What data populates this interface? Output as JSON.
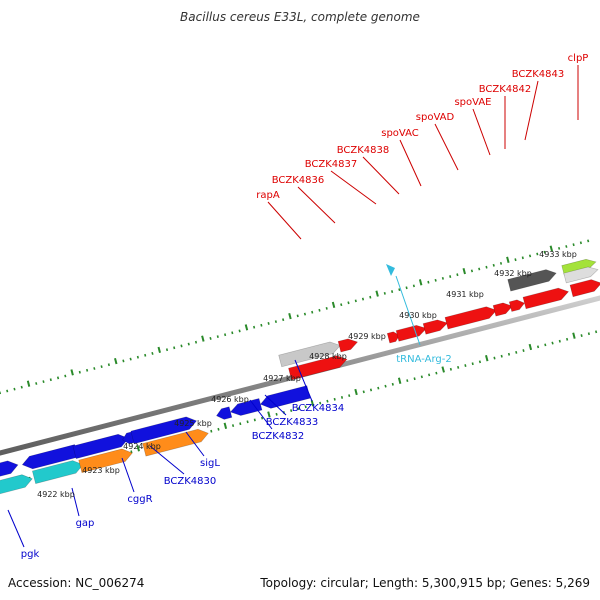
{
  "title": "Bacillus cereus E33L, complete genome",
  "footer": {
    "accession": "Accession: NC_006274",
    "summary": "Topology: circular; Length: 5,300,915 bp; Genes: 5,269"
  },
  "ruler_labels": [
    "4922 kbp",
    "4923 kbp",
    "4924 kbp",
    "4925 kbp",
    "4926 kbp",
    "4927 kbp",
    "4928 kbp",
    "4929 kbp",
    "4930 kbp",
    "4931 kbp",
    "4932 kbp",
    "4933 kbp"
  ],
  "genes_top": [
    "rapA",
    "BCZK4836",
    "BCZK4837",
    "BCZK4838",
    "spoVAC",
    "spoVAD",
    "spoVAE",
    "BCZK4842",
    "BCZK4843",
    "clpP"
  ],
  "genes_bottom": [
    "pgk",
    "gap",
    "cggR",
    "BCZK4830",
    "sigL",
    "BCZK4832",
    "BCZK4833",
    "BCZK4834"
  ],
  "trna": [
    "tRNA-Arg-2"
  ],
  "colors": {
    "red": "#ee1111",
    "blue": "#1111dd",
    "cyan": "#22c9cc",
    "orange": "#ff8c1a",
    "gray": "#666666",
    "lightgray": "#c8c8c8",
    "lime": "#a4e23a",
    "tick": "#2a8a2a",
    "trna": "#33bbdd"
  }
}
